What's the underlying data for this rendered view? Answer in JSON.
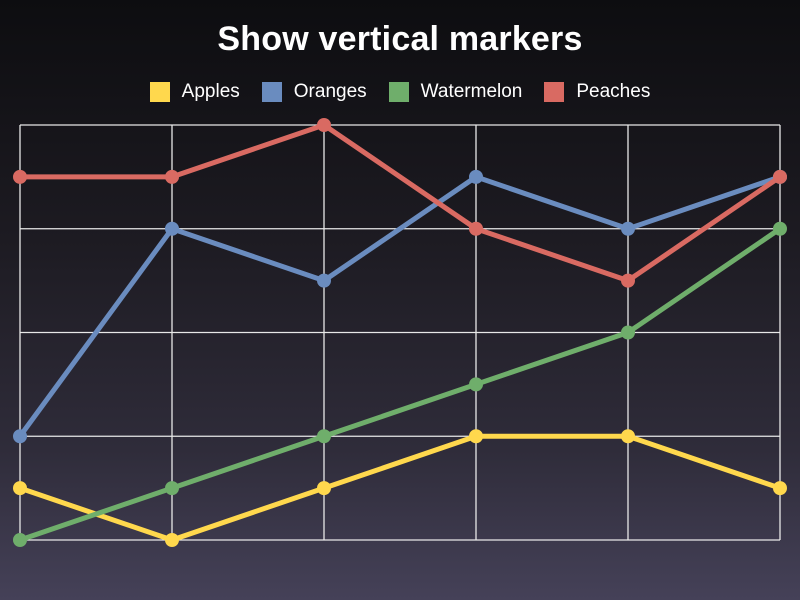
{
  "chart_data": {
    "type": "line",
    "title": "Show vertical markers",
    "xlabel": "",
    "ylabel": "",
    "x": [
      0,
      1,
      2,
      3,
      4,
      5
    ],
    "ylim": [
      0,
      8
    ],
    "grid": true,
    "vertical_markers": true,
    "legend_position": "top",
    "series": [
      {
        "name": "Apples",
        "color": "#ffd84d",
        "values": [
          1,
          0,
          1,
          2,
          2,
          1
        ]
      },
      {
        "name": "Oranges",
        "color": "#6a8cbf",
        "values": [
          2,
          6,
          5,
          7,
          6,
          7
        ]
      },
      {
        "name": "Watermelon",
        "color": "#6fae6b",
        "values": [
          0,
          1,
          2,
          3,
          4,
          6
        ]
      },
      {
        "name": "Peaches",
        "color": "#d96a62",
        "values": [
          7,
          7,
          8,
          6,
          5,
          7
        ]
      }
    ]
  },
  "colors": {
    "grid": "#e8e8e8",
    "text": "#ffffff"
  }
}
